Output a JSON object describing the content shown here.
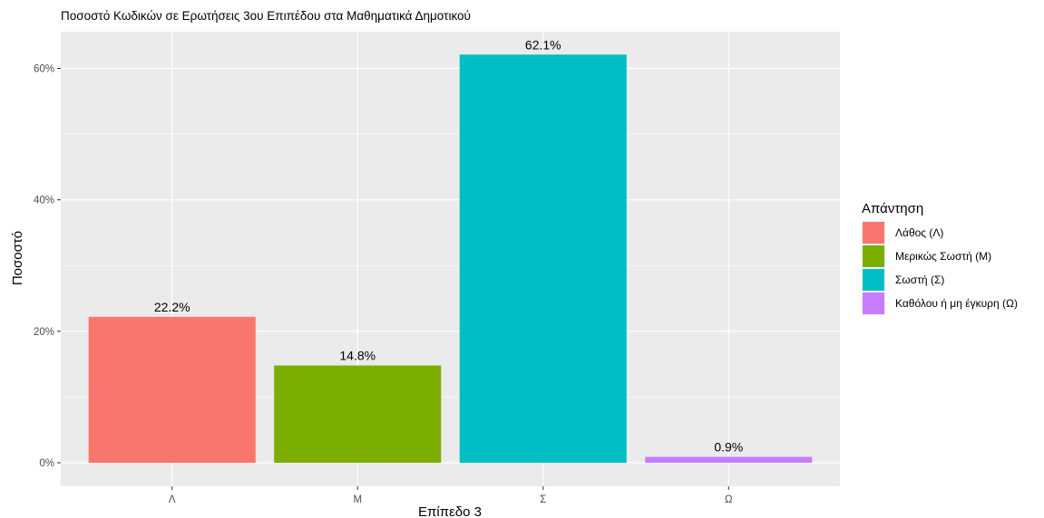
{
  "chart_data": {
    "type": "bar",
    "title": "Ποσοστό Κωδικών σε Ερωτήσεις 3ου Επιπέδου στα Μαθηματικά Δημοτικού",
    "xlabel": "Επίπεδο 3",
    "ylabel": "Ποσοστό",
    "categories": [
      "Λ",
      "Μ",
      "Σ",
      "Ω"
    ],
    "values": [
      22.2,
      14.8,
      62.1,
      0.9
    ],
    "value_labels": [
      "22.2%",
      "14.8%",
      "62.1%",
      "0.9%"
    ],
    "ylim": [
      0,
      65.3
    ],
    "yticks": [
      0,
      20,
      40,
      60
    ],
    "ytick_labels": [
      "0%",
      "20%",
      "40%",
      "60%"
    ],
    "colors": [
      "#F8766D",
      "#7CAE00",
      "#00BFC4",
      "#C77CFF"
    ],
    "grid": true,
    "panel_background": "#EBEBEB",
    "legend": {
      "title": "Απάντηση",
      "position": "right",
      "items": [
        {
          "label": "Λάθος (Λ)",
          "color": "#F8766D"
        },
        {
          "label": "Μερικώς Σωστή (Μ)",
          "color": "#7CAE00"
        },
        {
          "label": "Σωστή (Σ)",
          "color": "#00BFC4"
        },
        {
          "label": "Καθόλου ή μη έγκυρη (Ω)",
          "color": "#C77CFF"
        }
      ]
    }
  }
}
